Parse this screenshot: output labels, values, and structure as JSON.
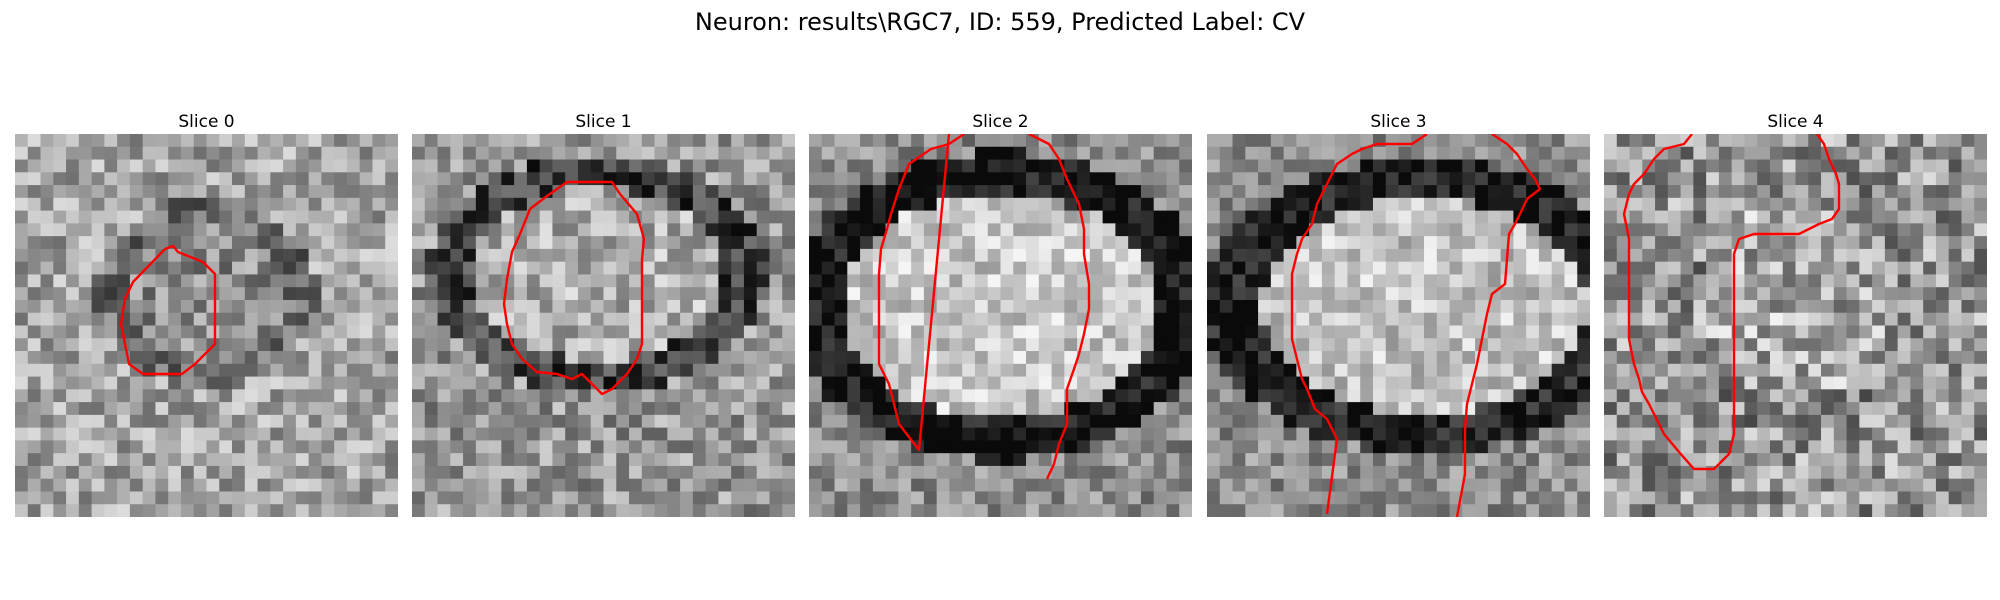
{
  "figure": {
    "suptitle": "Neuron: results\\RGC7, ID: 559, Predicted Label: CV"
  },
  "panels": [
    {
      "title": "Slice 0"
    },
    {
      "title": "Slice 1"
    },
    {
      "title": "Slice 2"
    },
    {
      "title": "Slice 3"
    },
    {
      "title": "Slice 4"
    }
  ],
  "colors": {
    "contour": "#ff0000",
    "background": "#ffffff"
  }
}
